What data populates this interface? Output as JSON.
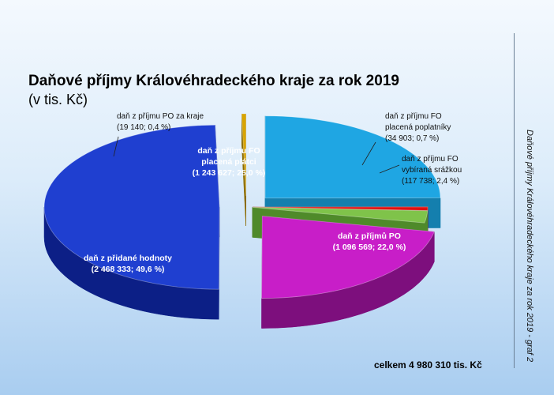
{
  "title": "Daňové příjmy Královéhradeckého kraje za rok 2019",
  "subtitle": "(v tis. Kč)",
  "total": "celkem 4 980 310 tis. Kč",
  "side_caption": "Daňové příjmy Královéhradeckého kraje za rok 2019 - graf 2",
  "chart_data": {
    "type": "pie",
    "title": "Daňové příjmy Královéhradeckého kraje za rok 2019",
    "subtitle": "(v tis. Kč)",
    "unit": "tis. Kč",
    "exploded": true,
    "three_d": true,
    "labels": {
      "po_kraje": [
        "daň z příjmu PO za kraje",
        "(19 140; 0,4 %)"
      ],
      "fo_platci": [
        "daň z příjmu FO",
        "placená plátci",
        "(1 243 627; 25,0 %)"
      ],
      "fo_poplatnici": [
        "daň z příjmu FO",
        "placená poplatníky",
        "(34 903; 0,7 %)"
      ],
      "fo_srazkou": [
        "daň z příjmu FO",
        "vybíraná srážkou",
        "(117 738; 2,4 %)"
      ],
      "po": [
        "daň z příjmů PO",
        "(1 096 569; 22,0 %)"
      ],
      "dph": [
        "daň z přidané hodnoty",
        "(2 468 333; 49,6 %)"
      ]
    },
    "slices": [
      {
        "key": "fo_platci",
        "value": 1243627,
        "percent": 25.0,
        "color": "#1fa6e3",
        "side": "#147fae"
      },
      {
        "key": "fo_poplatnici",
        "value": 34903,
        "percent": 0.7,
        "color": "#e01010",
        "side": "#9c0a0a"
      },
      {
        "key": "fo_srazkou",
        "value": 117738,
        "percent": 2.4,
        "color": "#7fc34a",
        "side": "#4f8a2a"
      },
      {
        "key": "po",
        "value": 1096569,
        "percent": 22.0,
        "color": "#c81ec8",
        "side": "#7d0f7d"
      },
      {
        "key": "dph",
        "value": 2468333,
        "percent": 49.6,
        "color": "#1f3fd0",
        "side": "#0c1f86"
      },
      {
        "key": "po_kraje",
        "value": 19140,
        "percent": 0.4,
        "color": "#d9a400",
        "side": "#8a6a00"
      }
    ]
  }
}
